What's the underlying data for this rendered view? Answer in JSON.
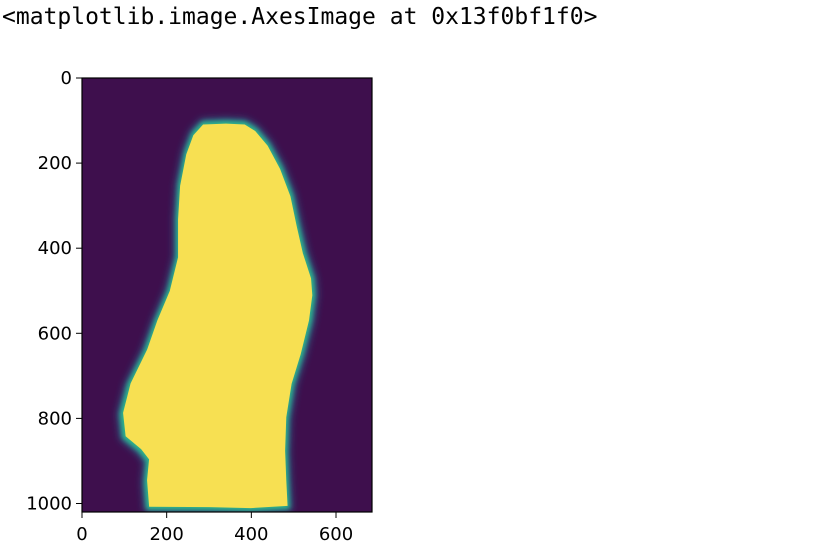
{
  "output_text": "<matplotlib.image.AxesImage at 0x13f0bf1f0>",
  "colors": {
    "background": "#3e0f4d",
    "foreground": "#f7e052",
    "edge_mid": "#2fb58a",
    "edge_outer": "#2a6f8e"
  },
  "chart_data": {
    "type": "heatmap",
    "title": "",
    "xlabel": "",
    "ylabel": "",
    "xlim": [
      0,
      685
    ],
    "ylim": [
      1020,
      0
    ],
    "y_axis_inverted": true,
    "xticks": [
      0,
      200,
      400,
      600
    ],
    "yticks": [
      0,
      200,
      400,
      600,
      800,
      1000
    ],
    "xtick_labels": [
      "0",
      "200",
      "400",
      "600"
    ],
    "ytick_labels": [
      "0",
      "200",
      "400",
      "600",
      "800",
      "1000"
    ],
    "colormap": "viridis",
    "value_range": [
      0,
      1
    ],
    "grid": false,
    "legend": "none",
    "mask_boundary": [
      [
        285,
        105
      ],
      [
        340,
        103
      ],
      [
        385,
        105
      ],
      [
        410,
        120
      ],
      [
        440,
        155
      ],
      [
        470,
        210
      ],
      [
        495,
        275
      ],
      [
        510,
        345
      ],
      [
        525,
        410
      ],
      [
        545,
        470
      ],
      [
        548,
        510
      ],
      [
        540,
        570
      ],
      [
        520,
        650
      ],
      [
        498,
        720
      ],
      [
        485,
        800
      ],
      [
        482,
        880
      ],
      [
        485,
        950
      ],
      [
        488,
        1010
      ],
      [
        400,
        1015
      ],
      [
        300,
        1013
      ],
      [
        155,
        1012
      ],
      [
        150,
        950
      ],
      [
        155,
        900
      ],
      [
        135,
        875
      ],
      [
        98,
        845
      ],
      [
        92,
        790
      ],
      [
        110,
        720
      ],
      [
        150,
        640
      ],
      [
        175,
        570
      ],
      [
        205,
        500
      ],
      [
        225,
        420
      ],
      [
        225,
        330
      ],
      [
        230,
        250
      ],
      [
        245,
        175
      ],
      [
        262,
        130
      ]
    ]
  }
}
